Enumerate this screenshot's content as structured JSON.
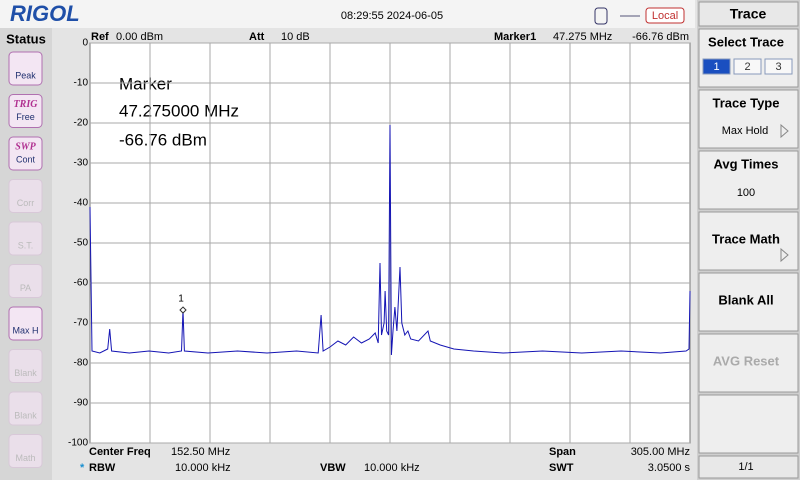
{
  "header": {
    "logo": "RIGOL",
    "datetime": "08:29:55 2024-06-05",
    "mode": "Local"
  },
  "status": {
    "title": "Status",
    "buttons": [
      [
        "Peak"
      ],
      [
        "TRIG",
        "Free"
      ],
      [
        "SWP",
        "Cont"
      ],
      [
        "Corr"
      ],
      [
        "S.T."
      ],
      [
        "PA"
      ],
      [
        "Max H"
      ],
      [
        "Blank"
      ],
      [
        "Blank"
      ],
      [
        "Math"
      ]
    ]
  },
  "info": {
    "ref": "Ref",
    "ref_value": "0.00 dBm",
    "att": "Att",
    "att_value": "10 dB",
    "marker": "Marker1",
    "marker_freq": "47.275 MHz",
    "marker_level": "-66.76 dBm"
  },
  "marker_box": [
    "Marker",
    "47.275000 MHz",
    "-66.76 dBm"
  ],
  "footer": {
    "center_label": "Center Freq",
    "center_value": "152.50 MHz",
    "span_label": "Span",
    "span_value": "305.00 MHz",
    "rbw_star": "*",
    "rbw_label": "RBW",
    "rbw_value": "10.000 kHz",
    "vbw_label": "VBW",
    "vbw_value": "10.000 kHz",
    "swt_label": "SWT",
    "swt_value": "3.0500 s"
  },
  "menu": {
    "title": "Trace",
    "select_trace": "Select Trace",
    "trace_options": [
      "1",
      "2",
      "3"
    ],
    "trace_type": "Trace Type",
    "trace_type_value": "Max Hold",
    "avg_times": "Avg Times",
    "avg_times_value": "100",
    "trace_math": "Trace Math",
    "blank_all": "Blank All",
    "avg_reset": "AVG Reset",
    "page": "1/1"
  },
  "chart_data": {
    "type": "line",
    "x": [
      0,
      1,
      5,
      9,
      10,
      11,
      20,
      30,
      40,
      46.5,
      47.275,
      48,
      60,
      75,
      90,
      105,
      116,
      117.5,
      118.5,
      122,
      126,
      130,
      134,
      138,
      142,
      145,
      146.5,
      147.4,
      148.2,
      149.5,
      150,
      150.8,
      151.8,
      152.5,
      153.2,
      154,
      155,
      156,
      157.6,
      158.5,
      160,
      161.6,
      163,
      167,
      171.8,
      173,
      178,
      185,
      195,
      210,
      230,
      250,
      270,
      290,
      303,
      304.5,
      305
    ],
    "series": [
      {
        "color": "#1414b4",
        "values": [
          -41,
          -77,
          -77.5,
          -76.5,
          -71.5,
          -77,
          -77.5,
          -77,
          -77.5,
          -77,
          -66.76,
          -77,
          -77.5,
          -77,
          -77.5,
          -77,
          -77.5,
          -68,
          -77,
          -76,
          -74.5,
          -75.5,
          -73.5,
          -75,
          -74,
          -72.5,
          -75,
          -55,
          -73,
          -70,
          -62,
          -72,
          -73,
          -20.5,
          -78,
          -72,
          -66,
          -72,
          -56,
          -70,
          -73,
          -72,
          -74,
          -74.5,
          -72,
          -74.5,
          -75.5,
          -76.5,
          -77,
          -77.5,
          -77,
          -77.5,
          -77,
          -77.5,
          -77,
          -76.5,
          -62
        ]
      }
    ],
    "xlim": [
      0,
      305
    ],
    "ylim": [
      -100,
      0
    ],
    "yticks": [
      0,
      -10,
      -20,
      -30,
      -40,
      -50,
      -60,
      -70,
      -80,
      -90,
      -100
    ],
    "grid": true,
    "marker": {
      "label": "1",
      "x": 47.275,
      "y": -66.76
    }
  }
}
